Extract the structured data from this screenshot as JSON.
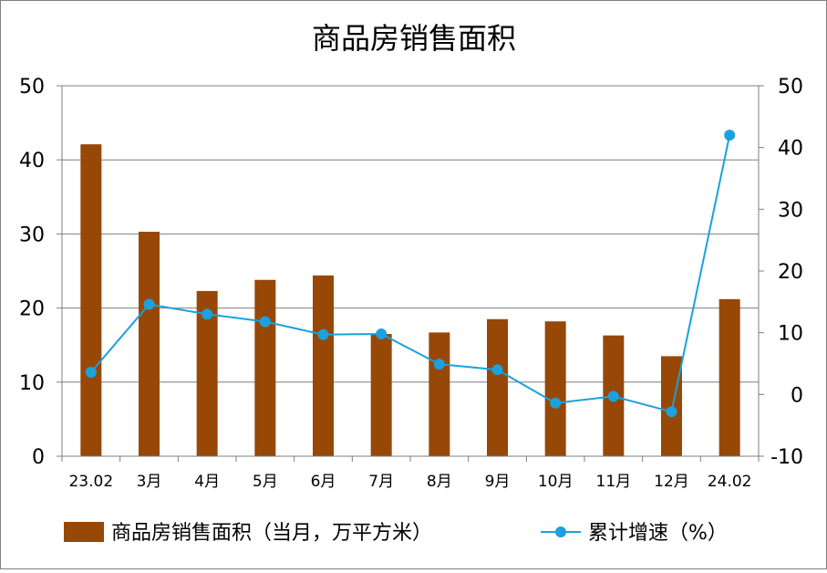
{
  "chart_data": {
    "type": "bar+line",
    "title": "商品房销售面积",
    "categories": [
      "23.02",
      "3月",
      "4月",
      "5月",
      "6月",
      "7月",
      "8月",
      "9月",
      "10月",
      "11月",
      "12月",
      "24.02"
    ],
    "bar_series": {
      "name": "商品房销售面积（当月，万平方米）",
      "color": "#974706",
      "axis": "left",
      "values": [
        42.1,
        30.3,
        22.3,
        23.8,
        24.4,
        16.5,
        16.7,
        18.5,
        18.2,
        16.3,
        13.5,
        21.2
      ]
    },
    "line_series": {
      "name": "累计增速（%）",
      "color": "#1BA1DD",
      "axis": "right",
      "values": [
        3.6,
        14.6,
        13.0,
        11.8,
        9.7,
        9.8,
        4.9,
        4.0,
        -1.4,
        -0.3,
        -2.8,
        42.0
      ]
    },
    "y_left": {
      "min": 0,
      "max": 50,
      "ticks": [
        0,
        10,
        20,
        30,
        40,
        50
      ]
    },
    "y_right": {
      "min": -10,
      "max": 50,
      "ticks": [
        -10,
        0,
        10,
        20,
        30,
        40,
        50
      ]
    },
    "grid": true,
    "legend_position": "bottom"
  }
}
